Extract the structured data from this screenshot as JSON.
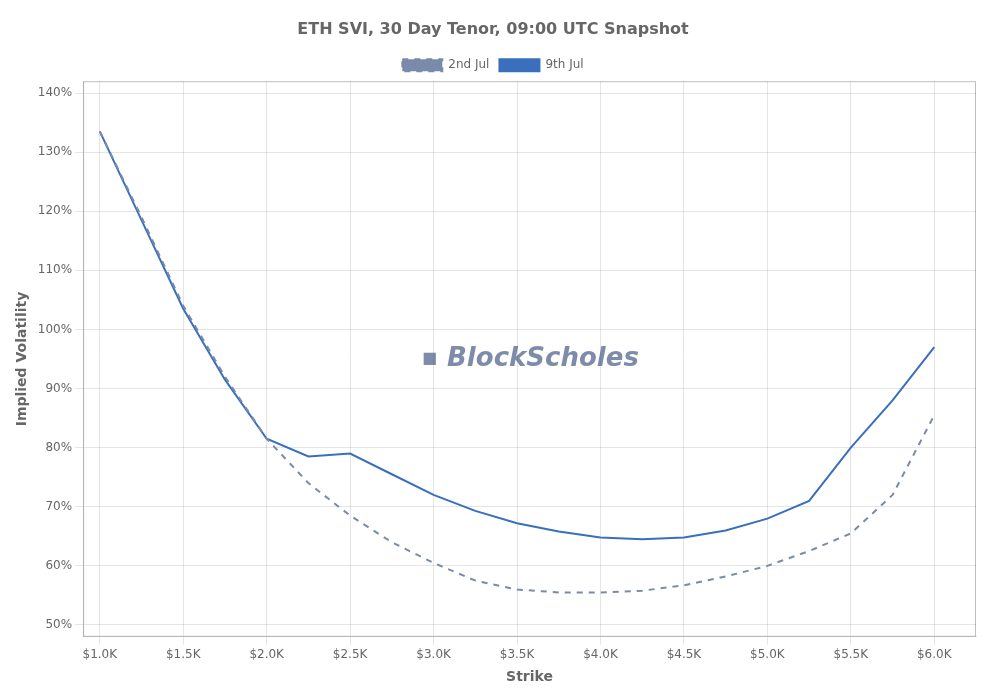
{
  "chart_data": {
    "type": "line",
    "title": "ETH SVI, 30 Day Tenor, 09:00 UTC Snapshot",
    "x_label": "Strike",
    "y_label": "Implied Volatility",
    "annotations": [
      "■",
      "BlockScholes"
    ],
    "x": [
      1000,
      1250,
      1500,
      1750,
      2000,
      2250,
      2500,
      2750,
      3000,
      3250,
      3500,
      3750,
      4000,
      4250,
      4500,
      4750,
      5000,
      5250,
      5500,
      5750,
      6000
    ],
    "series": [
      {
        "name": "2nd Jul",
        "color": "#7a8aaa",
        "line_style": "dashed",
        "values": [
          1.335,
          1.19,
          1.04,
          0.92,
          0.815,
          0.74,
          0.685,
          0.64,
          0.605,
          0.575,
          0.56,
          0.555,
          0.555,
          0.558,
          0.567,
          0.582,
          0.6,
          0.625,
          0.655,
          0.72,
          0.855
        ]
      },
      {
        "name": "9th Jul",
        "color": "#3a6fbd",
        "line_style": "solid",
        "values": [
          1.335,
          1.185,
          1.035,
          0.915,
          0.815,
          0.785,
          0.79,
          0.755,
          0.72,
          0.693,
          0.672,
          0.658,
          0.648,
          0.645,
          0.648,
          0.66,
          0.68,
          0.71,
          0.8,
          0.88,
          0.97
        ]
      }
    ],
    "xlim": [
      900,
      6250
    ],
    "xticks": [
      {
        "value": 1000,
        "label": "$1.0K"
      },
      {
        "value": 1500,
        "label": "$1.5K"
      },
      {
        "value": 2000,
        "label": "$2.0K"
      },
      {
        "value": 2500,
        "label": "$2.5K"
      },
      {
        "value": 3000,
        "label": "$3.0K"
      },
      {
        "value": 3500,
        "label": "$3.5K"
      },
      {
        "value": 4000,
        "label": "$4.0K"
      },
      {
        "value": 4500,
        "label": "$4.5K"
      },
      {
        "value": 5000,
        "label": "$5.0K"
      },
      {
        "value": 5500,
        "label": "$5.5K"
      },
      {
        "value": 6000,
        "label": "$6.0K"
      }
    ],
    "ylim": [
      0.48,
      1.42
    ],
    "yticks": [
      {
        "value": 0.5,
        "label": "50%"
      },
      {
        "value": 0.6,
        "label": "60%"
      },
      {
        "value": 0.7,
        "label": "70%"
      },
      {
        "value": 0.8,
        "label": "80%"
      },
      {
        "value": 0.9,
        "label": "90%"
      },
      {
        "value": 1.0,
        "label": "100%"
      },
      {
        "value": 1.1,
        "label": "110%"
      },
      {
        "value": 1.2,
        "label": "120%"
      },
      {
        "value": 1.3,
        "label": "130%"
      },
      {
        "value": 1.4,
        "label": "140%"
      }
    ],
    "grid": true,
    "legend": "top"
  }
}
